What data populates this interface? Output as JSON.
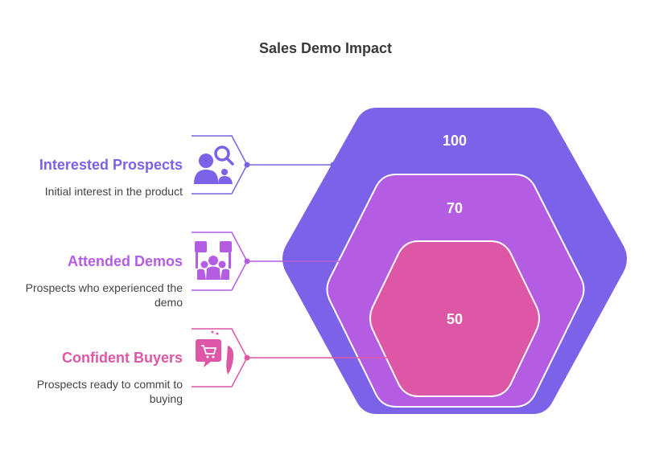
{
  "title": "Sales Demo Impact",
  "colors": {
    "outer": "#7B62E8",
    "middle": "#B45DE3",
    "inner": "#DE57A7"
  },
  "levels": [
    {
      "name": "Interested Prospects",
      "description": "Initial interest in the product",
      "value": "100",
      "icon": "prospect-search-icon"
    },
    {
      "name": "Attended Demos",
      "description": "Prospects who experienced the demo",
      "value": "70",
      "icon": "demo-audience-icon"
    },
    {
      "name": "Confident Buyers",
      "description": "Prospects ready to commit to buying",
      "value": "50",
      "icon": "shopping-cart-buyer-icon"
    }
  ]
}
